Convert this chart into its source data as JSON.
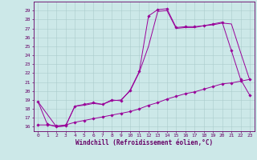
{
  "xlabel": "Windchill (Refroidissement éolien,°C)",
  "background_color": "#cce8e8",
  "line_color": "#990099",
  "xlim": [
    -0.5,
    23.5
  ],
  "ylim": [
    15.5,
    30.0
  ],
  "xticks": [
    0,
    1,
    2,
    3,
    4,
    5,
    6,
    7,
    8,
    9,
    10,
    11,
    12,
    13,
    14,
    15,
    16,
    17,
    18,
    19,
    20,
    21,
    22,
    23
  ],
  "yticks": [
    16,
    17,
    18,
    19,
    20,
    21,
    22,
    23,
    24,
    25,
    26,
    27,
    28,
    29
  ],
  "series1_x": [
    0,
    1,
    2,
    3,
    4,
    5,
    6,
    7,
    8,
    9,
    10,
    11,
    12,
    13,
    14,
    15,
    16,
    17,
    18,
    19,
    20,
    21,
    22,
    23
  ],
  "series1_y": [
    18.8,
    16.3,
    16.0,
    16.1,
    18.3,
    18.5,
    18.7,
    18.5,
    19.0,
    18.9,
    20.1,
    22.2,
    28.4,
    29.1,
    29.2,
    27.1,
    27.2,
    27.2,
    27.3,
    27.5,
    27.7,
    24.5,
    21.3,
    19.5
  ],
  "series2_x": [
    0,
    1,
    2,
    3,
    4,
    5,
    6,
    7,
    8,
    9,
    10,
    11,
    12,
    13,
    14,
    15,
    16,
    17,
    18,
    19,
    20,
    21,
    22,
    23
  ],
  "series2_y": [
    16.2,
    16.2,
    16.1,
    16.2,
    16.5,
    16.7,
    16.9,
    17.1,
    17.3,
    17.5,
    17.7,
    18.0,
    18.4,
    18.7,
    19.1,
    19.4,
    19.7,
    19.9,
    20.2,
    20.5,
    20.8,
    20.9,
    21.1,
    21.3
  ],
  "series3_x": [
    0,
    2,
    3,
    4,
    5,
    6,
    7,
    8,
    9,
    10,
    11,
    12,
    13,
    14,
    15,
    16,
    17,
    18,
    19,
    20,
    21,
    22,
    23
  ],
  "series3_y": [
    18.8,
    16.0,
    16.1,
    18.3,
    18.4,
    18.6,
    18.5,
    18.9,
    19.0,
    20.0,
    22.1,
    25.0,
    28.9,
    29.0,
    27.0,
    27.1,
    27.1,
    27.3,
    27.4,
    27.6,
    27.5,
    24.3,
    21.2
  ],
  "tick_color": "#660066",
  "tick_fontsize": 4.5,
  "xlabel_fontsize": 5.5,
  "grid_color": "#aacccc",
  "spine_color": "#660066"
}
